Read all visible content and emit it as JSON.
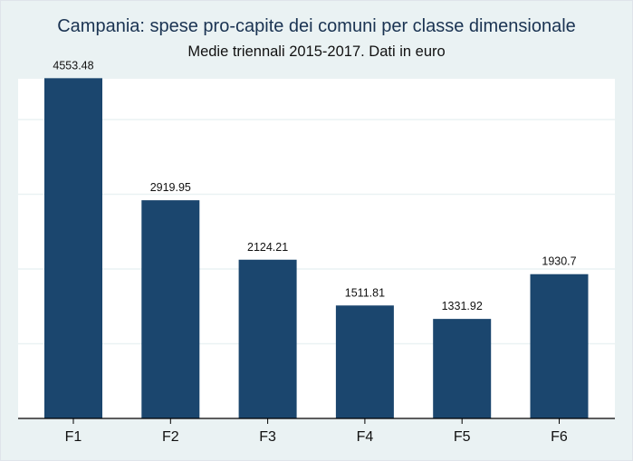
{
  "chart_data": {
    "type": "bar",
    "title": "Campania: spese pro-capite dei comuni per classe dimensionale",
    "subtitle": "Medie triennali 2015-2017. Dati in euro",
    "categories": [
      "F1",
      "F2",
      "F3",
      "F4",
      "F5",
      "F6"
    ],
    "values": [
      4553.48,
      2919.95,
      2124.21,
      1511.81,
      1331.92,
      1930.7
    ],
    "value_labels": [
      "4553.48",
      "2919.95",
      "2124.21",
      "1511.81",
      "1331.92",
      "1930.7"
    ],
    "xlabel": "",
    "ylabel": "",
    "ylim": [
      0,
      5000
    ],
    "grid": true,
    "legend": "none",
    "colors": {
      "bar": "#1b466e",
      "frame_background": "#eaf2f3",
      "plot_background": "#ffffff",
      "gridline": "#eaf2f3",
      "axis": "#000000",
      "title": "#1a3352"
    }
  }
}
